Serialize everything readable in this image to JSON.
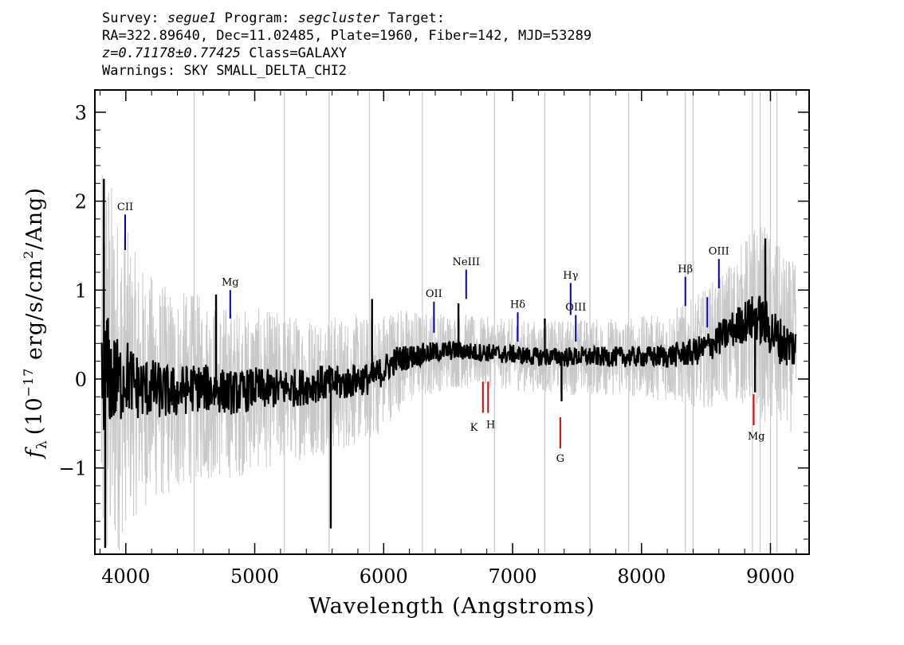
{
  "header": {
    "survey_label": "Survey:",
    "survey": "segue1",
    "program_label": "Program:",
    "program": "segcluster",
    "target_label": "Target:",
    "line2": "RA=322.89640, Dec=11.02485, Plate=1960, Fiber=142, MJD=53289",
    "redshift": "z=0.71178±0.77425",
    "class": "Class=GALAXY",
    "warnings": "Warnings: SKY SMALL_DELTA_CHI2"
  },
  "chart_data": {
    "type": "line",
    "xlabel": "Wavelength (Angstroms)",
    "ylabel_symbol": "f",
    "ylabel_sub": "λ",
    "ylabel_pre": "(10",
    "ylabel_exp": "−17",
    "ylabel_post": " erg/s/cm",
    "ylabel_exp2": "2",
    "ylabel_end": "/Ang)",
    "xlim": [
      3760,
      9300
    ],
    "ylim": [
      -1.97,
      3.25
    ],
    "xticks": [
      4000,
      5000,
      6000,
      7000,
      8000,
      9000
    ],
    "yticks": [
      -1,
      0,
      1,
      2,
      3
    ],
    "ytick_labels": [
      "−1",
      "0",
      "1",
      "2",
      "3"
    ],
    "sky_lines_x": [
      4530,
      5230,
      5577,
      5890,
      6300,
      6860,
      7250,
      7600,
      7900,
      8340,
      8400,
      8860,
      8920,
      9000,
      9050
    ],
    "series": [
      {
        "role": "error",
        "color": "#c8c8c8",
        "x": [
          3810,
          3850,
          3900,
          3950,
          4000,
          4100,
          4200,
          4300,
          4400,
          4500,
          4600,
          4700,
          4800,
          4900,
          5000,
          5100,
          5200,
          5300,
          5400,
          5500,
          5600,
          5700,
          5800,
          5900,
          6000,
          6100,
          6200,
          6300,
          6400,
          6500,
          6600,
          6700,
          6800,
          6900,
          7000,
          7100,
          7200,
          7300,
          7400,
          7500,
          7600,
          7700,
          7800,
          7900,
          8000,
          8100,
          8200,
          8300,
          8400,
          8500,
          8600,
          8700,
          8800,
          8900,
          9000,
          9100,
          9200
        ],
        "y": [
          1.7,
          1.9,
          1.6,
          1.4,
          1.25,
          1.05,
          0.95,
          0.9,
          0.85,
          0.8,
          0.78,
          0.75,
          0.72,
          0.7,
          0.68,
          0.66,
          0.64,
          0.62,
          0.6,
          0.6,
          0.58,
          0.56,
          0.54,
          0.52,
          0.5,
          0.45,
          0.4,
          0.36,
          0.34,
          0.32,
          0.32,
          0.3,
          0.3,
          0.3,
          0.3,
          0.3,
          0.3,
          0.3,
          0.32,
          0.32,
          0.32,
          0.32,
          0.33,
          0.34,
          0.34,
          0.36,
          0.38,
          0.42,
          0.45,
          0.5,
          0.55,
          0.6,
          0.7,
          0.8,
          0.85,
          0.75,
          0.7
        ]
      },
      {
        "role": "flux",
        "color": "#000000",
        "x": [
          3810,
          3850,
          3900,
          3950,
          4000,
          4100,
          4200,
          4300,
          4400,
          4500,
          4600,
          4700,
          4800,
          4900,
          5000,
          5100,
          5200,
          5300,
          5400,
          5500,
          5600,
          5700,
          5800,
          5900,
          6000,
          6100,
          6200,
          6300,
          6400,
          6500,
          6600,
          6700,
          6800,
          6900,
          7000,
          7100,
          7200,
          7300,
          7400,
          7500,
          7600,
          7700,
          7800,
          7900,
          8000,
          8100,
          8200,
          8300,
          8400,
          8500,
          8600,
          8700,
          8800,
          8900,
          9000,
          9100,
          9200
        ],
        "y": [
          -0.05,
          0.1,
          0.0,
          -0.05,
          0.05,
          -0.1,
          -0.1,
          -0.15,
          -0.15,
          -0.1,
          -0.1,
          -0.12,
          -0.15,
          -0.15,
          -0.1,
          -0.12,
          -0.1,
          -0.1,
          -0.08,
          -0.05,
          -0.05,
          -0.05,
          0.0,
          0.0,
          0.1,
          0.22,
          0.25,
          0.28,
          0.3,
          0.32,
          0.32,
          0.3,
          0.3,
          0.28,
          0.28,
          0.26,
          0.25,
          0.25,
          0.25,
          0.25,
          0.25,
          0.25,
          0.25,
          0.25,
          0.25,
          0.25,
          0.26,
          0.28,
          0.3,
          0.35,
          0.45,
          0.55,
          0.65,
          0.7,
          0.55,
          0.4,
          0.35
        ]
      }
    ],
    "spikes": [
      {
        "x": 3830,
        "y": 2.25
      },
      {
        "x": 3840,
        "y": -1.9
      },
      {
        "x": 4700,
        "y": 0.95
      },
      {
        "x": 5590,
        "y": -1.68
      },
      {
        "x": 5910,
        "y": 0.9
      },
      {
        "x": 6580,
        "y": 0.85
      },
      {
        "x": 7250,
        "y": 0.68
      },
      {
        "x": 7380,
        "y": -0.25
      },
      {
        "x": 8880,
        "y": -0.15
      },
      {
        "x": 8960,
        "y": 1.58
      }
    ],
    "emission_lines": [
      {
        "label": "CII",
        "x": 3995,
        "y1": 1.45,
        "y2": 1.85,
        "ly": 1.9,
        "color": "#0000bb"
      },
      {
        "label": "Mg",
        "x": 4810,
        "y1": 0.68,
        "y2": 1.0,
        "ly": 1.05,
        "color": "#0000bb"
      },
      {
        "label": "OII",
        "x": 6390,
        "y1": 0.52,
        "y2": 0.87,
        "ly": 0.92,
        "color": "#0000bb"
      },
      {
        "label": "NeIII",
        "x": 6640,
        "y1": 0.9,
        "y2": 1.23,
        "ly": 1.28,
        "color": "#0000bb"
      },
      {
        "label": "Hδ",
        "x": 7040,
        "y1": 0.42,
        "y2": 0.75,
        "ly": 0.8,
        "color": "#0000bb"
      },
      {
        "label": "Hγ",
        "x": 7450,
        "y1": 0.72,
        "y2": 1.08,
        "ly": 1.13,
        "color": "#0000bb"
      },
      {
        "label": "OIII",
        "x": 7490,
        "y1": 0.42,
        "y2": 0.72,
        "ly": 0.77,
        "color": "#0000bb"
      },
      {
        "label": "Hβ",
        "x": 8340,
        "y1": 0.82,
        "y2": 1.15,
        "ly": 1.2,
        "color": "#0000bb"
      },
      {
        "label": "",
        "x": 8510,
        "y1": 0.58,
        "y2": 0.92,
        "ly": 0.97,
        "color": "#0000bb"
      },
      {
        "label": "OIII",
        "x": 8600,
        "y1": 1.02,
        "y2": 1.35,
        "ly": 1.4,
        "color": "#0000bb"
      }
    ],
    "absorption_lines": [
      {
        "label": "K",
        "x": 6770,
        "y1": -0.38,
        "y2": -0.03,
        "ly": -0.58,
        "lx": 6700,
        "color": "#dd0000"
      },
      {
        "label": "H",
        "x": 6810,
        "y1": -0.38,
        "y2": -0.03,
        "ly": -0.55,
        "lx": 6830,
        "color": "#dd0000"
      },
      {
        "label": "G",
        "x": 7370,
        "y1": -0.78,
        "y2": -0.43,
        "ly": -0.93,
        "lx": 7370,
        "color": "#dd0000"
      },
      {
        "label": "Mg",
        "x": 8870,
        "y1": -0.52,
        "y2": -0.17,
        "ly": -0.68,
        "lx": 8890,
        "color": "#dd0000"
      }
    ]
  }
}
